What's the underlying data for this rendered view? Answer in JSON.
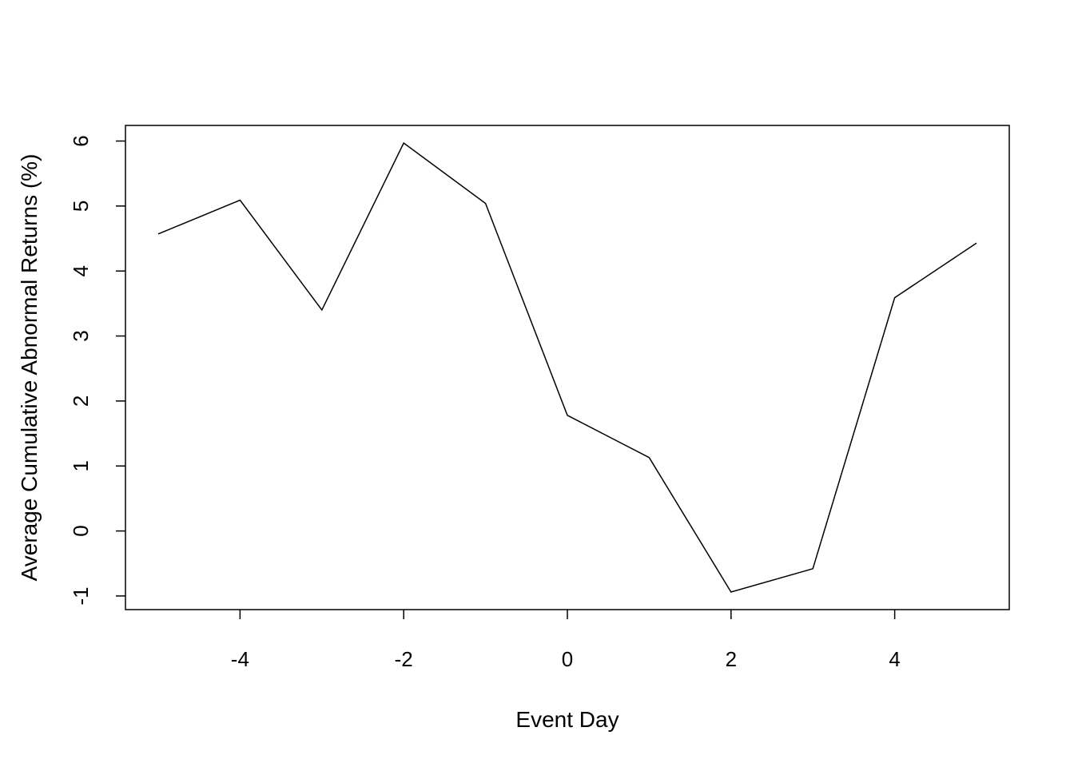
{
  "chart_data": {
    "type": "line",
    "title": "",
    "xlabel": "Event Day",
    "ylabel": "Average Cumulative Abnormal Returns (%)",
    "x": [
      -5,
      -4,
      -3,
      -2,
      -1,
      0,
      1,
      2,
      3,
      4,
      5
    ],
    "series": [
      {
        "values": [
          4.57,
          5.09,
          3.4,
          5.97,
          5.04,
          1.78,
          1.13,
          -0.94,
          -0.58,
          3.59,
          4.43
        ]
      }
    ],
    "xlim": [
      -5.4,
      5.4
    ],
    "ylim": [
      -1.21,
      6.24
    ],
    "x_ticks": [
      -4,
      -2,
      0,
      2,
      4
    ],
    "y_ticks": [
      -1,
      0,
      1,
      2,
      3,
      4,
      5,
      6
    ],
    "x_tick_labels": [
      "-4",
      "-2",
      "0",
      "2",
      "4"
    ],
    "y_tick_labels": [
      "-1",
      "0",
      "1",
      "2",
      "3",
      "4",
      "5",
      "6"
    ],
    "grid": false,
    "legend": "none",
    "line_color": "#000000"
  }
}
